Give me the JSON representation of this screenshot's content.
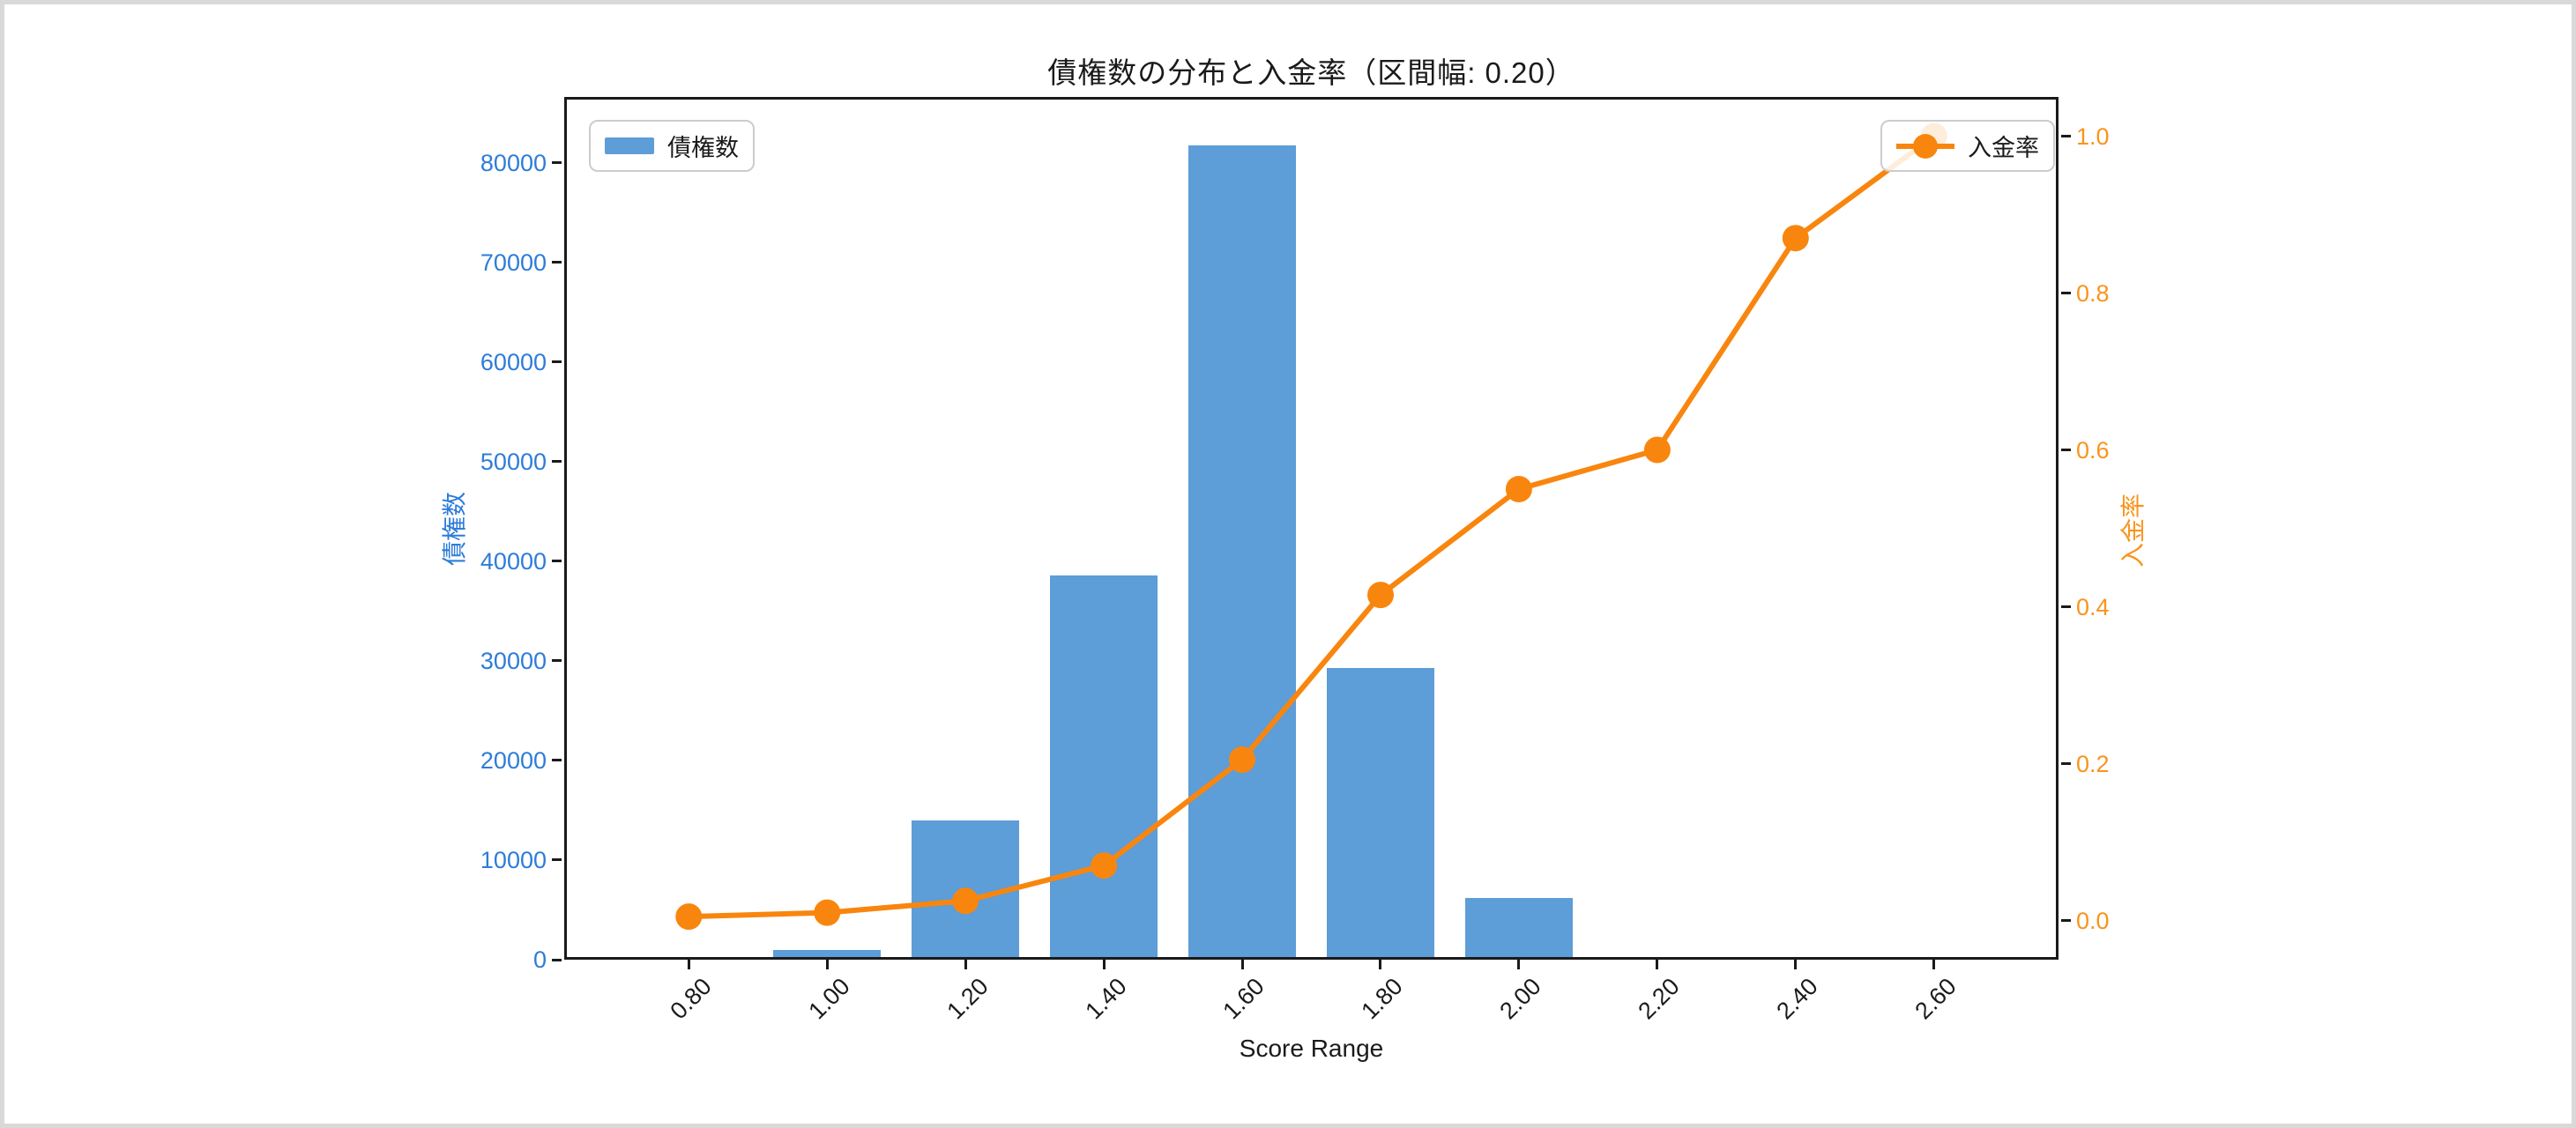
{
  "window": {
    "background": "#ffffff",
    "frame_color": "#d9d9d9"
  },
  "chart_data": {
    "type": "combo",
    "title": "債権数の分布と入金率（区間幅: 0.20）",
    "xlabel": "Score Range",
    "categories": [
      0.8,
      1.0,
      1.2,
      1.4,
      1.6,
      1.8,
      2.0,
      2.2,
      2.4,
      2.6
    ],
    "xtick_labels": [
      "0.80",
      "1.00",
      "1.20",
      "1.40",
      "1.60",
      "1.80",
      "2.00",
      "2.20",
      "2.40",
      "2.60"
    ],
    "series": [
      {
        "name": "債権数",
        "type": "bar",
        "axis": "left",
        "color": "#5D9DD8",
        "bar_width_units": 0.155,
        "values": [
          0,
          700,
          13800,
          38500,
          82000,
          29200,
          6000,
          0,
          0,
          0
        ]
      },
      {
        "name": "入金率",
        "type": "line",
        "axis": "right",
        "color": "#F8860E",
        "marker": "circle",
        "values": [
          0.005,
          0.01,
          0.025,
          0.07,
          0.205,
          0.415,
          0.55,
          0.6,
          0.87,
          1.0
        ]
      }
    ],
    "left_axis": {
      "label": "債権数",
      "tick_color": "#2E7CD9",
      "ticks": [
        0,
        10000,
        20000,
        30000,
        40000,
        50000,
        60000,
        70000,
        80000
      ],
      "lim": [
        0,
        86600
      ]
    },
    "right_axis": {
      "label": "入金率",
      "tick_color": "#F9941C",
      "tick_labels": [
        "0.0",
        "0.2",
        "0.4",
        "0.6",
        "0.8",
        "1.0"
      ],
      "lim": [
        -0.05,
        1.05
      ]
    },
    "xlim": [
      0.62,
      2.78
    ],
    "grid": false,
    "legend_position": [
      "upper left",
      "upper right"
    ]
  }
}
